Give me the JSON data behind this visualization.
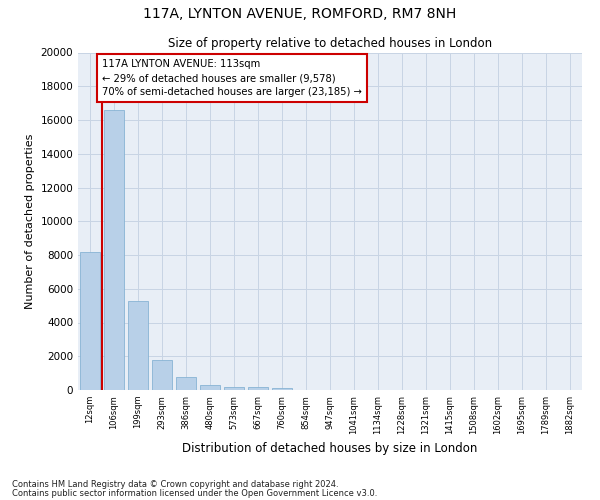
{
  "title1": "117A, LYNTON AVENUE, ROMFORD, RM7 8NH",
  "title2": "Size of property relative to detached houses in London",
  "xlabel": "Distribution of detached houses by size in London",
  "ylabel": "Number of detached properties",
  "bar_color": "#b8d0e8",
  "bar_edge_color": "#88b4d4",
  "grid_color": "#c8d4e4",
  "background_color": "#e8eef6",
  "vline_color": "#cc0000",
  "vline_x": 0.5,
  "annotation_text": "117A LYNTON AVENUE: 113sqm\n← 29% of detached houses are smaller (9,578)\n70% of semi-detached houses are larger (23,185) →",
  "annotation_box_color": "#ffffff",
  "annotation_border_color": "#cc0000",
  "categories": [
    "12sqm",
    "106sqm",
    "199sqm",
    "293sqm",
    "386sqm",
    "480sqm",
    "573sqm",
    "667sqm",
    "760sqm",
    "854sqm",
    "947sqm",
    "1041sqm",
    "1134sqm",
    "1228sqm",
    "1321sqm",
    "1415sqm",
    "1508sqm",
    "1602sqm",
    "1695sqm",
    "1789sqm",
    "1882sqm"
  ],
  "values": [
    8200,
    16600,
    5300,
    1800,
    750,
    300,
    200,
    150,
    100,
    0,
    0,
    0,
    0,
    0,
    0,
    0,
    0,
    0,
    0,
    0,
    0
  ],
  "ylim": [
    0,
    20000
  ],
  "yticks": [
    0,
    2000,
    4000,
    6000,
    8000,
    10000,
    12000,
    14000,
    16000,
    18000,
    20000
  ],
  "footnote1": "Contains HM Land Registry data © Crown copyright and database right 2024.",
  "footnote2": "Contains public sector information licensed under the Open Government Licence v3.0."
}
